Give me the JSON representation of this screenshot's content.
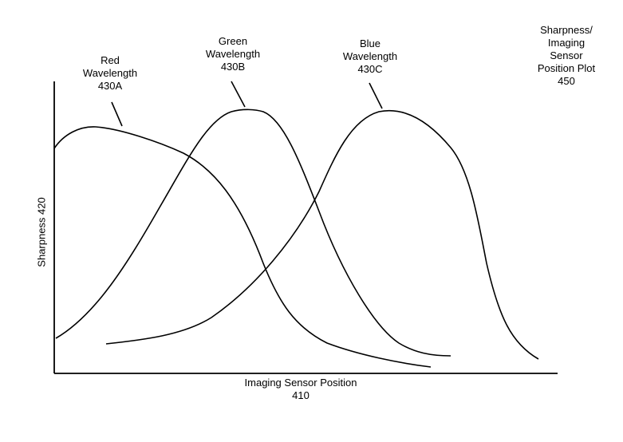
{
  "labels": {
    "red": {
      "line1": "Red",
      "line2": "Wavelength",
      "line3": "430A"
    },
    "green": {
      "line1": "Green",
      "line2": "Wavelength",
      "line3": "430B"
    },
    "blue": {
      "line1": "Blue",
      "line2": "Wavelength",
      "line3": "430C"
    },
    "plot": {
      "line1": "Sharpness/",
      "line2": "Imaging",
      "line3": "Sensor",
      "line4": "Position Plot",
      "line5": "450"
    },
    "y_axis": "Sharpness 420",
    "x_axis": {
      "line1": "Imaging Sensor Position",
      "line2": "410"
    }
  },
  "colors": {
    "ink": "#000000",
    "background": "#ffffff"
  }
}
